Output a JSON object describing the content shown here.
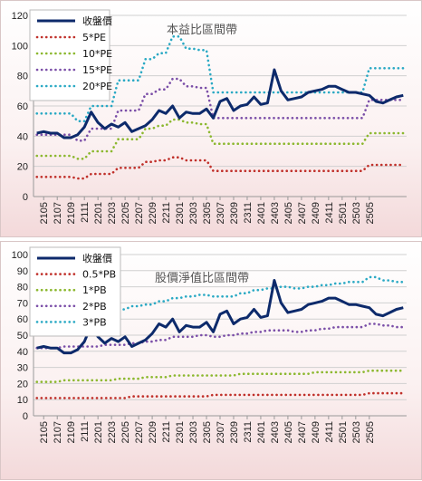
{
  "chart_data": [
    {
      "type": "line",
      "title": "本益比區間帶",
      "ylim": [
        0,
        120
      ],
      "yticks": [
        0,
        20,
        40,
        60,
        80,
        100,
        120
      ],
      "grid": true,
      "legend": "top-left",
      "x_tick_labels": [
        "2105",
        "2107",
        "2109",
        "2111",
        "2201",
        "2203",
        "2205",
        "2207",
        "2209",
        "2211",
        "2301",
        "2303",
        "2305",
        "2307",
        "2309",
        "2311",
        "2401",
        "2403",
        "2405",
        "2407",
        "2409",
        "2411",
        "2501",
        "2503",
        "2505"
      ],
      "series": [
        {
          "name": "收盤價",
          "color": "#0d2a6b",
          "style": "solid",
          "values": [
            42,
            43,
            42,
            42,
            39,
            39,
            41,
            46,
            56,
            49,
            45,
            48,
            46,
            49,
            43,
            45,
            47,
            51,
            57,
            55,
            60,
            52,
            56,
            55,
            55,
            58,
            52,
            63,
            65,
            57,
            60,
            61,
            66,
            61,
            62,
            84,
            70,
            64,
            65,
            66,
            69,
            70,
            71,
            73,
            73,
            71,
            69,
            69,
            68,
            67,
            63,
            62,
            64,
            66,
            67
          ]
        },
        {
          "name": "5*PE",
          "color": "#c0302a",
          "style": "dotted",
          "values": [
            13,
            13,
            13,
            13,
            13,
            13,
            12,
            12,
            15,
            15,
            15,
            15,
            19,
            19,
            19,
            19,
            23,
            23,
            24,
            24,
            26,
            26,
            24,
            24,
            24,
            24,
            17,
            17,
            17,
            17,
            17,
            17,
            17,
            17,
            17,
            17,
            17,
            17,
            17,
            17,
            17,
            17,
            17,
            17,
            17,
            17,
            17,
            17,
            17,
            21,
            21,
            21,
            21,
            21,
            21
          ]
        },
        {
          "name": "10*PE",
          "color": "#8cb82f",
          "style": "dotted",
          "values": [
            27,
            27,
            27,
            27,
            27,
            27,
            25,
            25,
            30,
            30,
            30,
            30,
            38,
            38,
            38,
            38,
            45,
            45,
            47,
            47,
            51,
            51,
            49,
            49,
            48,
            48,
            35,
            35,
            35,
            35,
            35,
            35,
            35,
            35,
            35,
            35,
            35,
            35,
            35,
            35,
            35,
            35,
            35,
            35,
            35,
            35,
            35,
            35,
            35,
            42,
            42,
            42,
            42,
            42,
            42
          ]
        },
        {
          "name": "15*PE",
          "color": "#7b4fa8",
          "style": "dotted",
          "values": [
            41,
            41,
            41,
            41,
            41,
            41,
            37,
            37,
            45,
            45,
            45,
            45,
            57,
            57,
            57,
            57,
            68,
            68,
            71,
            71,
            78,
            78,
            73,
            73,
            72,
            72,
            52,
            52,
            52,
            52,
            52,
            52,
            52,
            52,
            52,
            52,
            52,
            52,
            52,
            52,
            52,
            52,
            52,
            52,
            52,
            52,
            52,
            52,
            52,
            64,
            64,
            64,
            64,
            64,
            64
          ]
        },
        {
          "name": "20*PE",
          "color": "#2aa9c4",
          "style": "dotted",
          "values": [
            55,
            55,
            55,
            55,
            55,
            55,
            50,
            50,
            60,
            60,
            60,
            60,
            77,
            77,
            77,
            77,
            91,
            91,
            95,
            95,
            106,
            106,
            98,
            98,
            97,
            97,
            69,
            69,
            69,
            69,
            69,
            69,
            69,
            69,
            69,
            69,
            69,
            69,
            69,
            69,
            69,
            69,
            69,
            69,
            69,
            69,
            69,
            69,
            69,
            85,
            85,
            85,
            85,
            85,
            85
          ]
        }
      ]
    },
    {
      "type": "line",
      "title": "股價淨值比區間帶",
      "ylim": [
        0,
        100
      ],
      "yticks": [
        0,
        10,
        20,
        30,
        40,
        50,
        60,
        70,
        80,
        90,
        100
      ],
      "grid": true,
      "legend": "top-left",
      "x_tick_labels": [
        "2105",
        "2107",
        "2109",
        "2111",
        "2201",
        "2203",
        "2205",
        "2207",
        "2209",
        "2211",
        "2301",
        "2303",
        "2305",
        "2307",
        "2309",
        "2311",
        "2401",
        "2403",
        "2405",
        "2407",
        "2409",
        "2411",
        "2501",
        "2503",
        "2505"
      ],
      "series": [
        {
          "name": "收盤價",
          "color": "#0d2a6b",
          "style": "solid",
          "values": [
            42,
            43,
            42,
            42,
            39,
            39,
            41,
            46,
            56,
            49,
            45,
            48,
            46,
            49,
            43,
            45,
            47,
            51,
            57,
            55,
            60,
            52,
            56,
            55,
            55,
            58,
            52,
            63,
            65,
            57,
            60,
            61,
            66,
            61,
            62,
            84,
            70,
            64,
            65,
            66,
            69,
            70,
            71,
            73,
            73,
            71,
            69,
            69,
            68,
            67,
            63,
            62,
            64,
            66,
            67
          ]
        },
        {
          "name": "0.5*PB",
          "color": "#c0302a",
          "style": "dotted",
          "values": [
            11,
            11,
            11,
            11,
            11,
            11,
            11,
            11,
            11,
            11,
            11,
            11,
            11,
            11,
            12,
            12,
            12,
            12,
            12,
            12,
            12,
            12,
            12,
            12,
            12,
            12,
            13,
            13,
            13,
            13,
            13,
            13,
            13,
            13,
            13,
            13,
            13,
            13,
            13,
            13,
            13,
            13,
            13,
            13,
            13,
            13,
            13,
            13,
            13,
            14,
            14,
            14,
            14,
            14,
            14
          ]
        },
        {
          "name": "1*PB",
          "color": "#8cb82f",
          "style": "dotted",
          "values": [
            21,
            21,
            21,
            21,
            22,
            22,
            22,
            22,
            22,
            22,
            22,
            22,
            23,
            23,
            23,
            23,
            24,
            24,
            24,
            24,
            25,
            25,
            25,
            25,
            25,
            25,
            25,
            25,
            25,
            25,
            26,
            26,
            26,
            26,
            26,
            26,
            26,
            26,
            26,
            26,
            26,
            27,
            27,
            27,
            27,
            27,
            27,
            27,
            27,
            28,
            28,
            28,
            28,
            28,
            28
          ]
        },
        {
          "name": "2*PB",
          "color": "#7b4fa8",
          "style": "dotted",
          "values": [
            42,
            42,
            42,
            42,
            43,
            43,
            43,
            43,
            43,
            43,
            44,
            44,
            44,
            44,
            45,
            45,
            46,
            46,
            47,
            47,
            49,
            49,
            49,
            49,
            50,
            50,
            49,
            49,
            50,
            50,
            51,
            51,
            52,
            52,
            53,
            53,
            53,
            53,
            52,
            52,
            53,
            53,
            54,
            54,
            55,
            55,
            55,
            55,
            55,
            57,
            57,
            56,
            56,
            55,
            55
          ]
        },
        {
          "name": "3*PB",
          "color": "#2aa9c4",
          "style": "dotted",
          "values": [
            63,
            63,
            63,
            63,
            64,
            64,
            64,
            64,
            64,
            64,
            66,
            66,
            66,
            66,
            68,
            68,
            69,
            69,
            71,
            71,
            73,
            73,
            74,
            74,
            75,
            75,
            74,
            74,
            74,
            74,
            76,
            76,
            78,
            78,
            79,
            79,
            80,
            80,
            79,
            79,
            80,
            80,
            81,
            81,
            82,
            82,
            83,
            83,
            83,
            86,
            86,
            84,
            84,
            83,
            83
          ]
        }
      ]
    }
  ]
}
